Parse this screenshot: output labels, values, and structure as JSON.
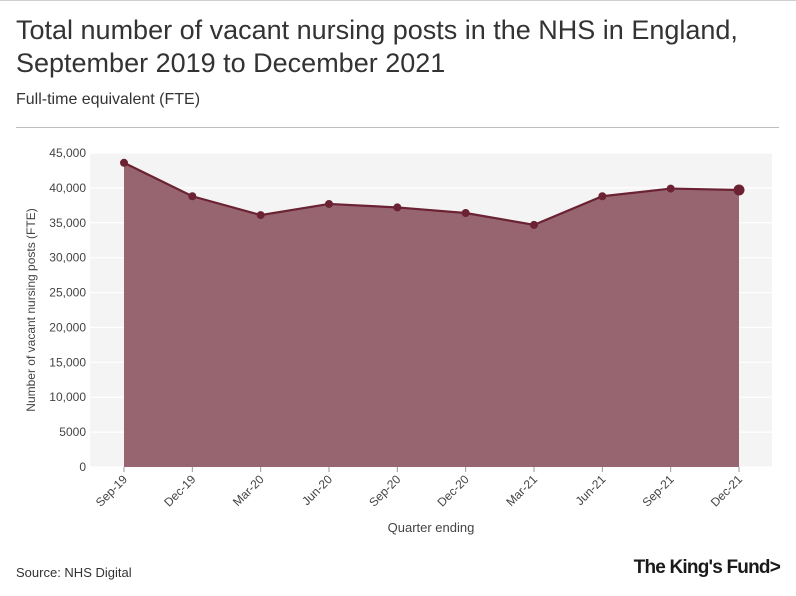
{
  "header": {
    "title": "Total number of vacant nursing posts in the NHS in England, September 2019 to December 2021",
    "subtitle": "Full-time equivalent (FTE)"
  },
  "footer": {
    "source": "Source: NHS Digital",
    "logo": "The King's Fund>"
  },
  "colors": {
    "area_fill": "#966570",
    "line": "#6b2233",
    "plot_bg": "#f4f4f4",
    "grid": "#ffffff"
  },
  "chart_data": {
    "type": "area",
    "title": "Total number of vacant nursing posts in the NHS in England, September 2019 to December 2021",
    "subtitle": "Full-time equivalent (FTE)",
    "xlabel": "Quarter ending",
    "ylabel": "Number of vacant nursing posts (FTE)",
    "categories": [
      "Sep-19",
      "Dec-19",
      "Mar-20",
      "Jun-20",
      "Sep-20",
      "Dec-20",
      "Mar-21",
      "Jun-21",
      "Sep-21",
      "Dec-21"
    ],
    "series": [
      {
        "values": [
          43600,
          38800,
          36100,
          37700,
          37200,
          36400,
          34700,
          38800,
          39900,
          39700
        ]
      }
    ],
    "ylim": [
      0,
      45000
    ],
    "yticks": [
      0,
      5000,
      10000,
      15000,
      20000,
      25000,
      30000,
      35000,
      40000,
      45000
    ],
    "ytick_labels": [
      "0",
      "5000",
      "10,000",
      "15,000",
      "20,000",
      "25,000",
      "30,000",
      "35,000",
      "40,000",
      "45,000"
    ],
    "grid": true,
    "legend": "none"
  }
}
